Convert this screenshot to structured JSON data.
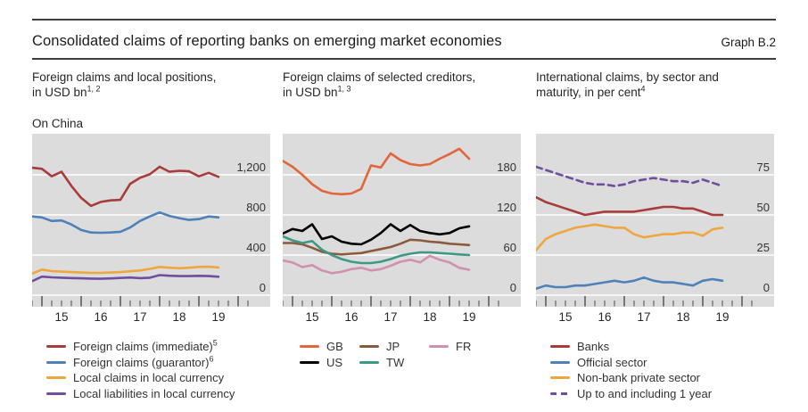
{
  "header": {
    "title": "Consolidated claims of reporting banks on emerging market economies",
    "graph_label": "Graph B.2"
  },
  "colors": {
    "plot_bg": "#dcdcdc",
    "grid": "#ffffff",
    "tick": "#4a4a4a",
    "axis_text": "#333333",
    "rule": "#3d3d3d",
    "red": "#a83c3a",
    "blue": "#4d81b8",
    "yellow": "#eea73d",
    "purple": "#6f4e9d",
    "orange": "#e2663a",
    "black": "#000000",
    "brown": "#8b5a3a",
    "teal": "#3d9986",
    "pink": "#d091af"
  },
  "x_axis": {
    "frequency": "quarterly",
    "quarters": [
      "2014-Q4",
      "2015-Q1",
      "2015-Q2",
      "2015-Q3",
      "2015-Q4",
      "2016-Q1",
      "2016-Q2",
      "2016-Q3",
      "2016-Q4",
      "2017-Q1",
      "2017-Q2",
      "2017-Q3",
      "2017-Q4",
      "2018-Q1",
      "2018-Q2",
      "2018-Q3",
      "2018-Q4",
      "2019-Q1",
      "2019-Q2",
      "2019-Q3"
    ],
    "year_labels": [
      "15",
      "16",
      "17",
      "18",
      "19"
    ]
  },
  "chart_data": [
    {
      "type": "line",
      "subtitle_line1": "Foreign claims and local positions,",
      "subtitle_line2": "in USD bn",
      "subtitle_footnote": "1, 2",
      "region": "On China",
      "x_labels": [
        "15",
        "16",
        "17",
        "18",
        "19"
      ],
      "yticks": [
        0,
        400,
        800,
        1200
      ],
      "ytick_labels": [
        "0",
        "400",
        "800",
        "1,200"
      ],
      "ytick_interval": 400,
      "ylim": [
        0,
        1600
      ],
      "legend_position": "below",
      "grid": true,
      "series": [
        {
          "name": "Foreign claims (immediate)",
          "footnote": "5",
          "color": "#a83c3a",
          "dash": false,
          "values": [
            1270,
            1260,
            1185,
            1230,
            1090,
            970,
            890,
            930,
            945,
            950,
            1110,
            1170,
            1205,
            1280,
            1230,
            1240,
            1235,
            1185,
            1220,
            1180
          ]
        },
        {
          "name": "Foreign claims (guarantor)",
          "footnote": "6",
          "color": "#4d81b8",
          "dash": false,
          "values": [
            785,
            775,
            740,
            745,
            705,
            650,
            625,
            622,
            625,
            632,
            675,
            740,
            785,
            825,
            790,
            768,
            750,
            758,
            785,
            775
          ]
        },
        {
          "name": "Local claims in local currency",
          "color": "#eea73d",
          "dash": false,
          "values": [
            215,
            255,
            240,
            235,
            230,
            226,
            222,
            222,
            226,
            230,
            238,
            246,
            262,
            282,
            274,
            268,
            274,
            282,
            284,
            276
          ]
        },
        {
          "name": "Local liabilities in local currency",
          "color": "#6f4e9d",
          "dash": false,
          "values": [
            140,
            185,
            178,
            174,
            171,
            168,
            165,
            164,
            167,
            172,
            176,
            170,
            174,
            200,
            194,
            190,
            190,
            193,
            190,
            184
          ]
        }
      ]
    },
    {
      "type": "line",
      "subtitle_line1": "Foreign claims of selected creditors,",
      "subtitle_line2": "in USD bn",
      "subtitle_footnote": "1, 3",
      "x_labels": [
        "15",
        "16",
        "17",
        "18",
        "19"
      ],
      "yticks": [
        0,
        60,
        120,
        180
      ],
      "ytick_labels": [
        "0",
        "60",
        "120",
        "180"
      ],
      "ytick_interval": 60,
      "ylim": [
        0,
        240
      ],
      "legend_position": "below",
      "grid": true,
      "series": [
        {
          "name": "GB",
          "color": "#e2663a",
          "dash": false,
          "values": [
            201,
            192,
            180,
            166,
            156,
            152,
            151,
            152,
            159,
            194,
            191,
            212,
            202,
            196,
            194,
            196,
            204,
            211,
            219,
            204
          ]
        },
        {
          "name": "US",
          "color": "#000000",
          "dash": false,
          "values": [
            92,
            99,
            96,
            106,
            84,
            88,
            80,
            77,
            76,
            83,
            93,
            106,
            96,
            105,
            96,
            93,
            91,
            93,
            100,
            103
          ]
        },
        {
          "name": "JP",
          "color": "#8b5a3a",
          "dash": false,
          "values": [
            78,
            78,
            76,
            71,
            65,
            62,
            61,
            62,
            63,
            66,
            69,
            72,
            77,
            83,
            82,
            80,
            79,
            77,
            76,
            75
          ]
        },
        {
          "name": "TW",
          "color": "#3d9986",
          "dash": false,
          "values": [
            88,
            82,
            78,
            81,
            68,
            60,
            54,
            50,
            48,
            48,
            50,
            54,
            59,
            62,
            64,
            64,
            63,
            62,
            61,
            60
          ]
        },
        {
          "name": "FR",
          "color": "#d091af",
          "dash": false,
          "values": [
            52,
            49,
            42,
            45,
            37,
            33,
            35,
            39,
            41,
            37,
            39,
            44,
            50,
            53,
            49,
            59,
            53,
            49,
            41,
            38
          ]
        }
      ]
    },
    {
      "type": "line",
      "subtitle_line1": "International claims, by sector and",
      "subtitle_line2": "maturity, in per cent",
      "subtitle_footnote": "4",
      "x_labels": [
        "15",
        "16",
        "17",
        "18",
        "19"
      ],
      "yticks": [
        0,
        25,
        50,
        75
      ],
      "ytick_labels": [
        "0",
        "25",
        "50",
        "75"
      ],
      "ytick_interval": 25,
      "ylim": [
        0,
        100
      ],
      "legend_position": "below",
      "grid": true,
      "series": [
        {
          "name": "Banks",
          "color": "#a83c3a",
          "dash": false,
          "values": [
            61,
            58,
            56,
            54,
            52,
            50,
            51,
            52,
            52,
            52,
            52,
            53,
            54,
            55,
            55,
            54,
            54,
            52,
            50,
            50
          ]
        },
        {
          "name": "Official sector",
          "color": "#4d81b8",
          "dash": false,
          "values": [
            4,
            6,
            5,
            5,
            6,
            6,
            7,
            8,
            9,
            8,
            9,
            11,
            9,
            8,
            8,
            7,
            6,
            9,
            10,
            9
          ]
        },
        {
          "name": "Non-bank private sector",
          "color": "#eea73d",
          "dash": false,
          "values": [
            28,
            35,
            38,
            40,
            42,
            43,
            44,
            43,
            42,
            42,
            38,
            36,
            37,
            38,
            38,
            39,
            39,
            37,
            41,
            42
          ]
        },
        {
          "name": "Up to and including 1 year",
          "color": "#6f4e9d",
          "dash": true,
          "values": [
            80,
            78,
            76,
            74,
            72,
            70,
            69,
            69,
            68,
            69,
            71,
            72,
            73,
            72,
            71,
            71,
            70,
            72,
            70,
            68
          ]
        }
      ]
    }
  ]
}
